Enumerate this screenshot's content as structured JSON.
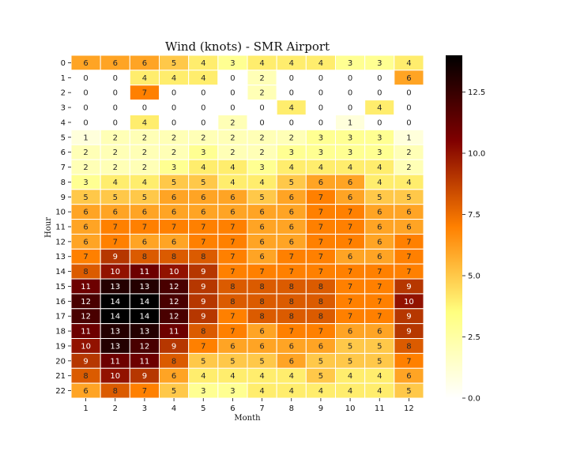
{
  "chart_data": {
    "type": "heatmap",
    "title": "Wind (knots) - SMR Airport",
    "xlabel": "Month",
    "ylabel": "Hour",
    "x_categories": [
      "1",
      "2",
      "3",
      "4",
      "5",
      "6",
      "7",
      "8",
      "9",
      "10",
      "11",
      "12"
    ],
    "y_categories": [
      "0",
      "1",
      "2",
      "3",
      "4",
      "5",
      "6",
      "7",
      "8",
      "9",
      "10",
      "11",
      "12",
      "13",
      "14",
      "15",
      "16",
      "17",
      "18",
      "19",
      "20",
      "21",
      "22"
    ],
    "values": [
      [
        6,
        6,
        6,
        5,
        4,
        3,
        4,
        4,
        4,
        3,
        3,
        4
      ],
      [
        0,
        0,
        4,
        4,
        4,
        0,
        2,
        0,
        0,
        0,
        0,
        6
      ],
      [
        0,
        0,
        7,
        0,
        0,
        0,
        2,
        0,
        0,
        0,
        0,
        0
      ],
      [
        0,
        0,
        0,
        0,
        0,
        0,
        0,
        4,
        0,
        0,
        4,
        0
      ],
      [
        0,
        0,
        4,
        0,
        0,
        2,
        0,
        0,
        0,
        1,
        0,
        0
      ],
      [
        1,
        2,
        2,
        2,
        2,
        2,
        2,
        2,
        3,
        3,
        3,
        1
      ],
      [
        2,
        2,
        2,
        2,
        3,
        2,
        2,
        3,
        3,
        3,
        3,
        2
      ],
      [
        2,
        2,
        2,
        3,
        4,
        4,
        3,
        4,
        4,
        4,
        4,
        2
      ],
      [
        3,
        4,
        4,
        5,
        5,
        4,
        4,
        5,
        6,
        6,
        4,
        4
      ],
      [
        5,
        5,
        5,
        6,
        6,
        6,
        5,
        6,
        7,
        6,
        5,
        5
      ],
      [
        6,
        6,
        6,
        6,
        6,
        6,
        6,
        6,
        7,
        7,
        6,
        6
      ],
      [
        6,
        7,
        7,
        7,
        7,
        7,
        6,
        6,
        7,
        7,
        6,
        6
      ],
      [
        6,
        7,
        6,
        6,
        7,
        7,
        6,
        6,
        7,
        7,
        6,
        7
      ],
      [
        7,
        9,
        8,
        8,
        8,
        7,
        6,
        7,
        7,
        6,
        6,
        7
      ],
      [
        8,
        10,
        11,
        10,
        9,
        7,
        7,
        7,
        7,
        7,
        7,
        7
      ],
      [
        11,
        13,
        13,
        12,
        9,
        8,
        8,
        8,
        8,
        7,
        7,
        9
      ],
      [
        12,
        14,
        14,
        12,
        9,
        8,
        8,
        8,
        8,
        7,
        7,
        10
      ],
      [
        12,
        14,
        14,
        12,
        9,
        7,
        8,
        8,
        8,
        7,
        7,
        9
      ],
      [
        11,
        13,
        13,
        11,
        8,
        7,
        6,
        7,
        7,
        6,
        6,
        9
      ],
      [
        10,
        13,
        12,
        9,
        7,
        6,
        6,
        6,
        6,
        5,
        5,
        8
      ],
      [
        9,
        11,
        11,
        8,
        5,
        5,
        5,
        6,
        5,
        5,
        5,
        7
      ],
      [
        8,
        10,
        9,
        6,
        4,
        4,
        4,
        4,
        5,
        4,
        4,
        6
      ],
      [
        6,
        8,
        7,
        5,
        3,
        3,
        4,
        4,
        4,
        4,
        4,
        5
      ]
    ],
    "colormap": "afmhot_r",
    "vmin": 0,
    "vmax": 14,
    "colorbar_ticks": [
      "0.0",
      "2.5",
      "5.0",
      "7.5",
      "10.0",
      "12.5"
    ],
    "colorbar_tick_values": [
      0,
      2.5,
      5,
      7.5,
      10,
      12.5
    ],
    "annotated": true,
    "gridline_color": "#ffffff"
  }
}
